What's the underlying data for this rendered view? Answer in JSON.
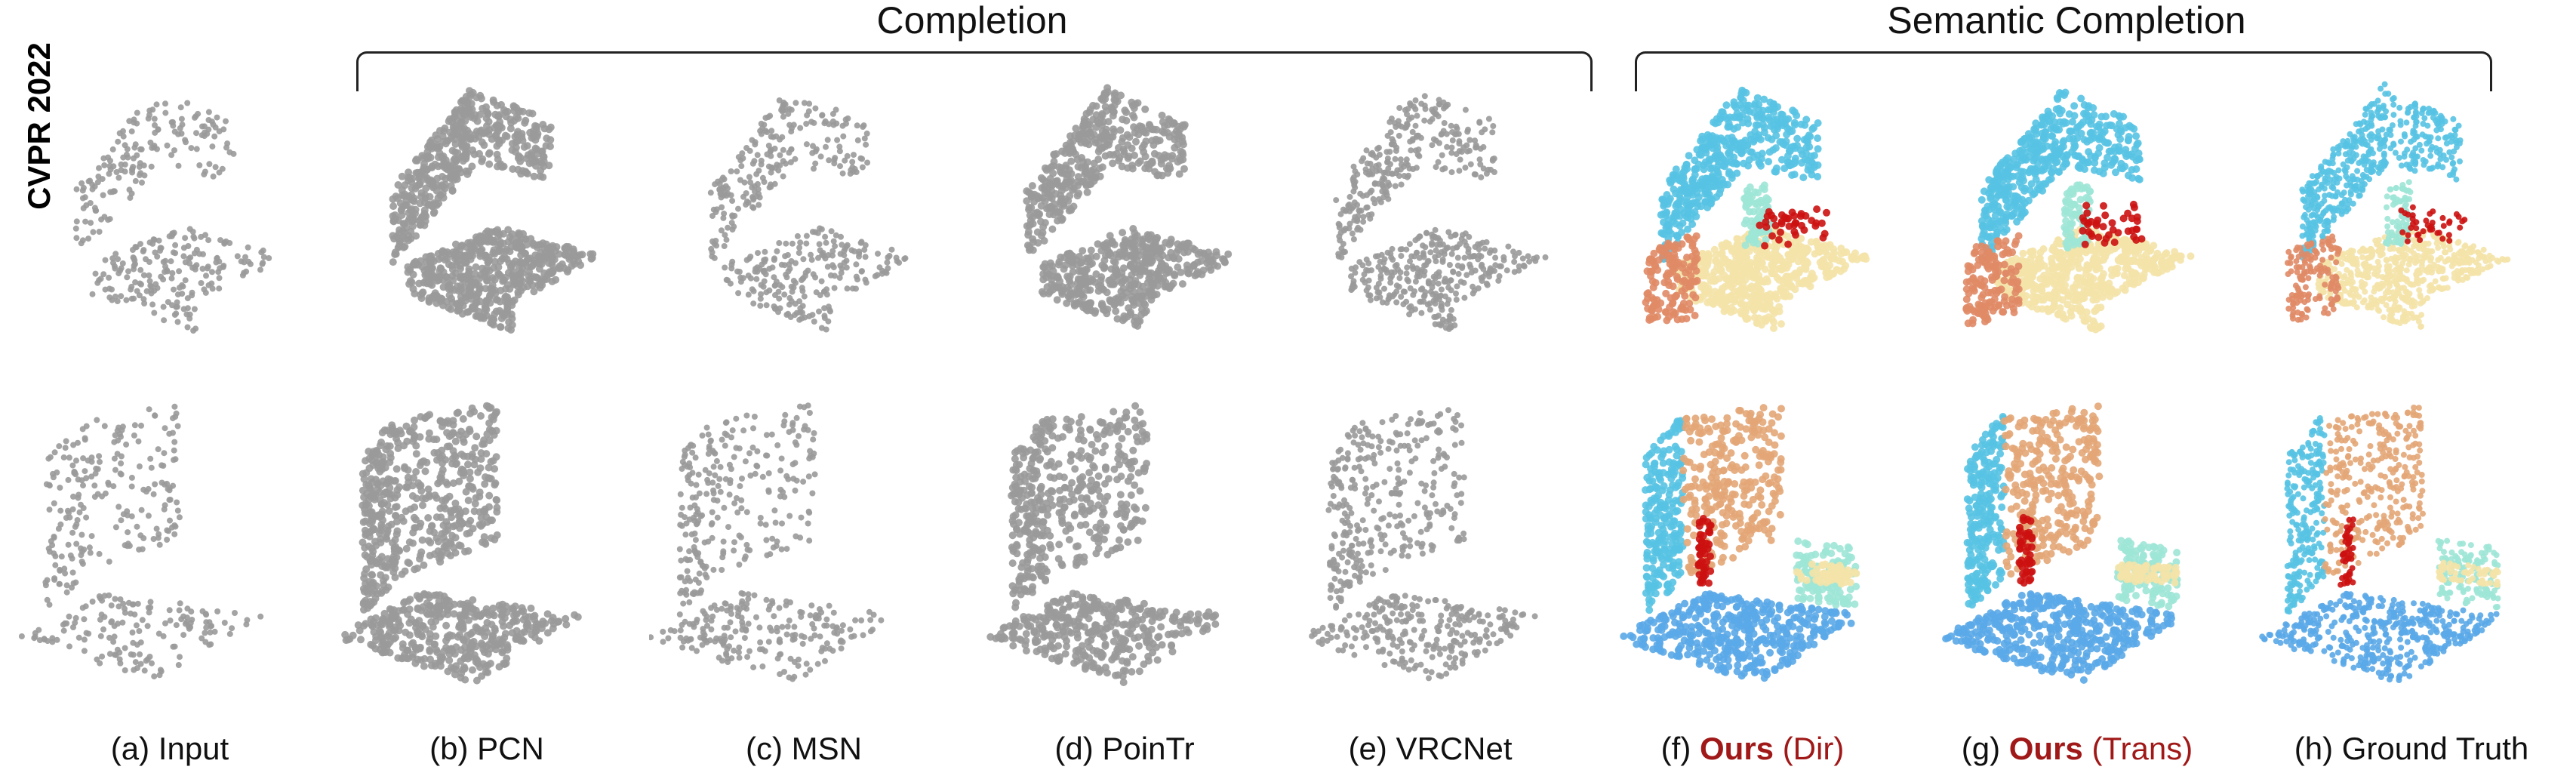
{
  "venue_label": "CVPR 2022",
  "group_titles": {
    "completion": "Completion",
    "semantic_completion": "Semantic Completion"
  },
  "captions": [
    {
      "id": "a",
      "text": "(a) Input"
    },
    {
      "id": "b",
      "text": "(b) PCN"
    },
    {
      "id": "c",
      "text": "(c) MSN"
    },
    {
      "id": "d",
      "text": "(d) PoinTr"
    },
    {
      "id": "e",
      "text": "(e) VRCNet"
    },
    {
      "id": "f",
      "prefix": "(f) ",
      "ours": "Ours",
      "variant": " (Dir)"
    },
    {
      "id": "g",
      "prefix": "(g) ",
      "ours": "Ours",
      "variant": " (Trans)"
    },
    {
      "id": "h",
      "text": "(h) Ground Truth"
    }
  ],
  "colors": {
    "gray_points": "#9a9a9a",
    "wall": "#58c3e3",
    "floor": "#5aa8e8",
    "bed": "#f4e3a8",
    "sofa": "#e08a66",
    "chair": "#9de6d6",
    "picture": "#cc1111",
    "cabinet": "#e3a677"
  }
}
